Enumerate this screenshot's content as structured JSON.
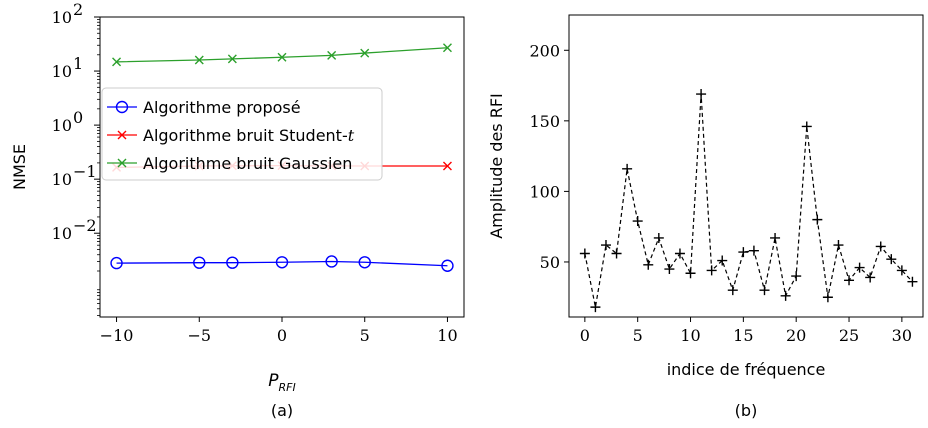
{
  "chart_data": [
    {
      "type": "line",
      "panel_caption": "(a)",
      "xlabel_main": "P",
      "xlabel_sub": "RFI",
      "ylabel": "NMSE",
      "yscale": "log",
      "xlim": [
        -11,
        11
      ],
      "ylim_exp": [
        -3.55,
        2
      ],
      "x_ticks": [
        -10,
        -5,
        0,
        5,
        10
      ],
      "x_tick_labels": [
        "−10",
        "−5",
        "0",
        "5",
        "10"
      ],
      "y_tick_exps": [
        -2,
        -1,
        0,
        1,
        2
      ],
      "y_tick_labels": [
        "10",
        "10",
        "10",
        "10",
        "10"
      ],
      "y_tick_sup": [
        "−2",
        "−1",
        "0",
        "1",
        "2"
      ],
      "x": [
        -10,
        -5,
        -3,
        0,
        3,
        5,
        10
      ],
      "series": [
        {
          "name": "Algorithme proposé",
          "color": "#0000ff",
          "marker": "circle",
          "values": [
            0.0028,
            0.00285,
            0.00285,
            0.0029,
            0.003,
            0.0029,
            0.0025
          ]
        },
        {
          "name": "Algorithme bruit Student-",
          "name_suffix": "t",
          "color": "#ff0000",
          "marker": "x",
          "values": [
            0.165,
            0.175,
            0.177,
            0.178,
            0.176,
            0.175,
            0.175
          ]
        },
        {
          "name": "Algorithme bruit Gaussien",
          "color": "#2ca02c",
          "marker": "x",
          "values": [
            14.8,
            16.0,
            16.8,
            18.0,
            19.5,
            21.5,
            27.0
          ]
        }
      ]
    },
    {
      "type": "line",
      "panel_caption": "(b)",
      "xlabel": "indice de fréquence",
      "ylabel": "Amplitude des RFI",
      "xlim": [
        -1.5,
        32
      ],
      "ylim": [
        11,
        225
      ],
      "x_ticks": [
        0,
        5,
        10,
        15,
        20,
        25,
        30
      ],
      "x_tick_labels": [
        "0",
        "5",
        "10",
        "15",
        "20",
        "25",
        "30"
      ],
      "y_ticks": [
        50,
        100,
        150,
        200
      ],
      "y_tick_labels": [
        "50",
        "100",
        "150",
        "200"
      ],
      "x": [
        0,
        1,
        2,
        3,
        4,
        5,
        6,
        7,
        8,
        9,
        10,
        11,
        12,
        13,
        14,
        15,
        16,
        17,
        18,
        19,
        20,
        21,
        22,
        23,
        24,
        25,
        26,
        27,
        28,
        29,
        30,
        31
      ],
      "series": [
        {
          "color": "#000000",
          "marker": "plus",
          "linestyle": "dashed",
          "values": [
            56,
            18,
            62,
            56,
            116,
            79,
            48,
            67,
            45,
            56,
            42,
            169,
            44,
            51,
            30,
            57,
            58,
            30,
            67,
            26,
            40,
            146,
            80,
            25,
            62,
            37,
            46,
            39,
            61,
            52,
            44,
            36
          ]
        }
      ]
    }
  ]
}
